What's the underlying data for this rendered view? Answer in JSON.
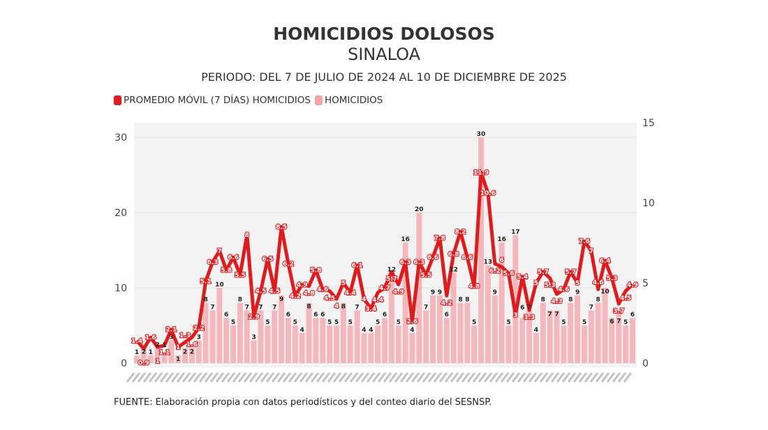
{
  "chart_data": {
    "type": "bar+line",
    "title": "HOMICIDIOS DOLOSOS",
    "subtitle": "SINALOA",
    "period": "PERIODO: DEL 7 DE JULIO DE 2024 AL 10 DE DICIEMBRE DE 2025",
    "x_start": "2024-07-07",
    "x_end": "2025-12-10",
    "legend_position": "top-left",
    "series": [
      {
        "name": "PROMEDIO MÓVIL (7 DÍAS) HOMICIDIOS",
        "type": "line",
        "axis": "right",
        "color": "#e31a1c",
        "values": [
          1.4,
          0.9,
          1.6,
          1.0,
          1.1,
          2.1,
          1.0,
          1.3,
          1.6,
          2.2,
          5.1,
          6.3,
          7.0,
          5.8,
          6.6,
          5.5,
          8.0,
          2.9,
          4.5,
          6.5,
          4.5,
          8.5,
          6.2,
          4.2,
          4.9,
          4.8,
          5.8,
          4.6,
          4.5,
          4.0,
          5.0,
          4.4,
          6.1,
          4.0,
          3.4,
          4.4,
          4.7,
          5.7,
          4.9,
          6.3,
          2.6,
          6.3,
          5.5,
          6.6,
          7.8,
          4.2,
          6.8,
          8.2,
          6.6,
          4.8,
          11.9,
          10.6,
          6.2,
          6.0,
          5.6,
          3.0,
          5.4,
          3.3,
          5.0,
          5.7,
          5.3,
          4.3,
          4.6,
          5.7,
          5.0,
          7.6,
          7.0,
          4.6,
          6.4,
          5.3,
          3.7,
          4.5,
          4.9
        ]
      },
      {
        "name": "HOMICIDIOS",
        "type": "bar",
        "axis": "left",
        "color": "#f4a3a8",
        "values": [
          1,
          2,
          1,
          2,
          1,
          3,
          1,
          2,
          2,
          3,
          8,
          7,
          10,
          6,
          5,
          8,
          7,
          3,
          7,
          5,
          7,
          9,
          6,
          5,
          4,
          8,
          6,
          6,
          5,
          5,
          8,
          5,
          7,
          4,
          4,
          5,
          6,
          12,
          5,
          16,
          4,
          20,
          7,
          9,
          9,
          6,
          12,
          8,
          8,
          5,
          30,
          13,
          9,
          16,
          5,
          17,
          6,
          7,
          4,
          8,
          7,
          7,
          5,
          8,
          9,
          5,
          7,
          8,
          10,
          6,
          7,
          5,
          6
        ]
      }
    ],
    "y_left": {
      "range": [
        0,
        30
      ],
      "ticks": [
        "0",
        "10",
        "20",
        "30"
      ]
    },
    "y_right": {
      "range": [
        0,
        15
      ],
      "ticks": [
        "0",
        "5",
        "10",
        "15"
      ]
    },
    "grid": true
  },
  "footer": "FUENTE: Elaboración propia con datos periodísticos y del conteo diario del SESNSP."
}
